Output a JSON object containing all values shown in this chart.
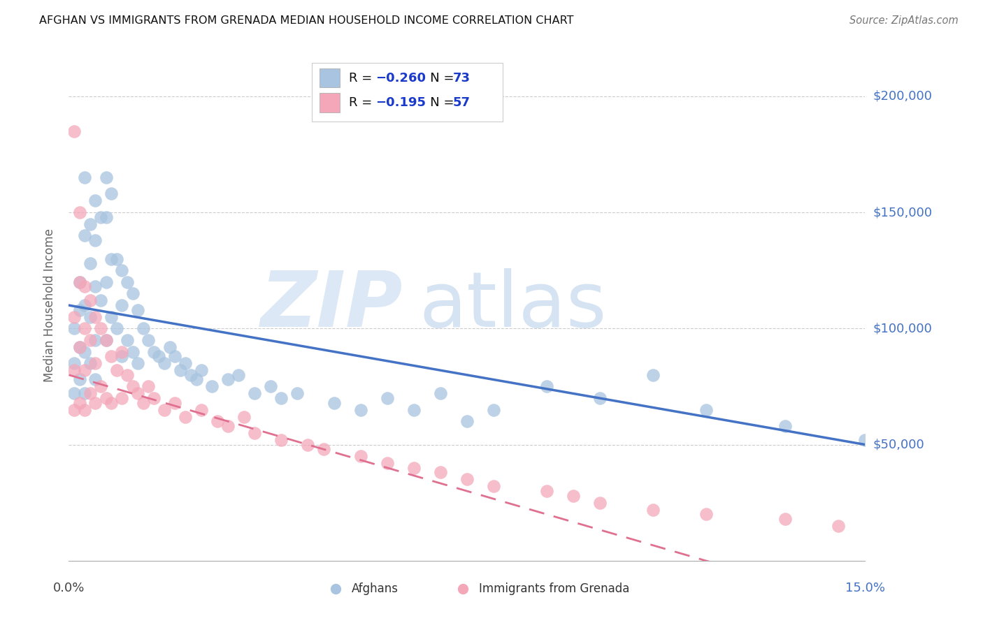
{
  "title": "AFGHAN VS IMMIGRANTS FROM GRENADA MEDIAN HOUSEHOLD INCOME CORRELATION CHART",
  "source": "Source: ZipAtlas.com",
  "ylabel": "Median Household Income",
  "ytick_labels": [
    "$50,000",
    "$100,000",
    "$150,000",
    "$200,000"
  ],
  "ytick_values": [
    50000,
    100000,
    150000,
    200000
  ],
  "ymin": 0,
  "ymax": 220000,
  "xmin": 0.0,
  "xmax": 0.15,
  "afghan_color": "#a8c4e0",
  "grenada_color": "#f4a7b9",
  "afghan_line_color": "#4472c4",
  "grenada_line_color": "#e07090",
  "legend_label_1": "Afghans",
  "legend_label_2": "Immigrants from Grenada",
  "afghan_x": [
    0.001,
    0.001,
    0.001,
    0.002,
    0.002,
    0.002,
    0.002,
    0.003,
    0.003,
    0.003,
    0.003,
    0.003,
    0.004,
    0.004,
    0.004,
    0.004,
    0.005,
    0.005,
    0.005,
    0.005,
    0.005,
    0.006,
    0.006,
    0.007,
    0.007,
    0.007,
    0.007,
    0.008,
    0.008,
    0.008,
    0.009,
    0.009,
    0.01,
    0.01,
    0.01,
    0.011,
    0.011,
    0.012,
    0.012,
    0.013,
    0.013,
    0.014,
    0.015,
    0.016,
    0.017,
    0.018,
    0.019,
    0.02,
    0.021,
    0.022,
    0.023,
    0.024,
    0.025,
    0.027,
    0.03,
    0.032,
    0.035,
    0.038,
    0.04,
    0.043,
    0.05,
    0.055,
    0.06,
    0.065,
    0.07,
    0.075,
    0.08,
    0.09,
    0.1,
    0.11,
    0.12,
    0.135,
    0.15
  ],
  "afghan_y": [
    100000,
    85000,
    72000,
    120000,
    108000,
    92000,
    78000,
    165000,
    140000,
    110000,
    90000,
    72000,
    145000,
    128000,
    105000,
    85000,
    155000,
    138000,
    118000,
    95000,
    78000,
    148000,
    112000,
    165000,
    148000,
    120000,
    95000,
    158000,
    130000,
    105000,
    130000,
    100000,
    125000,
    110000,
    88000,
    120000,
    95000,
    115000,
    90000,
    108000,
    85000,
    100000,
    95000,
    90000,
    88000,
    85000,
    92000,
    88000,
    82000,
    85000,
    80000,
    78000,
    82000,
    75000,
    78000,
    80000,
    72000,
    75000,
    70000,
    72000,
    68000,
    65000,
    70000,
    65000,
    72000,
    60000,
    65000,
    75000,
    70000,
    80000,
    65000,
    58000,
    52000
  ],
  "grenada_x": [
    0.001,
    0.001,
    0.001,
    0.001,
    0.002,
    0.002,
    0.002,
    0.002,
    0.003,
    0.003,
    0.003,
    0.003,
    0.004,
    0.004,
    0.004,
    0.005,
    0.005,
    0.005,
    0.006,
    0.006,
    0.007,
    0.007,
    0.008,
    0.008,
    0.009,
    0.01,
    0.01,
    0.011,
    0.012,
    0.013,
    0.014,
    0.015,
    0.016,
    0.018,
    0.02,
    0.022,
    0.025,
    0.028,
    0.03,
    0.033,
    0.035,
    0.04,
    0.045,
    0.048,
    0.055,
    0.06,
    0.065,
    0.07,
    0.075,
    0.08,
    0.09,
    0.095,
    0.1,
    0.11,
    0.12,
    0.135,
    0.145
  ],
  "grenada_y": [
    185000,
    105000,
    82000,
    65000,
    150000,
    120000,
    92000,
    68000,
    118000,
    100000,
    82000,
    65000,
    112000,
    95000,
    72000,
    105000,
    85000,
    68000,
    100000,
    75000,
    95000,
    70000,
    88000,
    68000,
    82000,
    90000,
    70000,
    80000,
    75000,
    72000,
    68000,
    75000,
    70000,
    65000,
    68000,
    62000,
    65000,
    60000,
    58000,
    62000,
    55000,
    52000,
    50000,
    48000,
    45000,
    42000,
    40000,
    38000,
    35000,
    32000,
    30000,
    28000,
    25000,
    22000,
    20000,
    18000,
    15000
  ]
}
